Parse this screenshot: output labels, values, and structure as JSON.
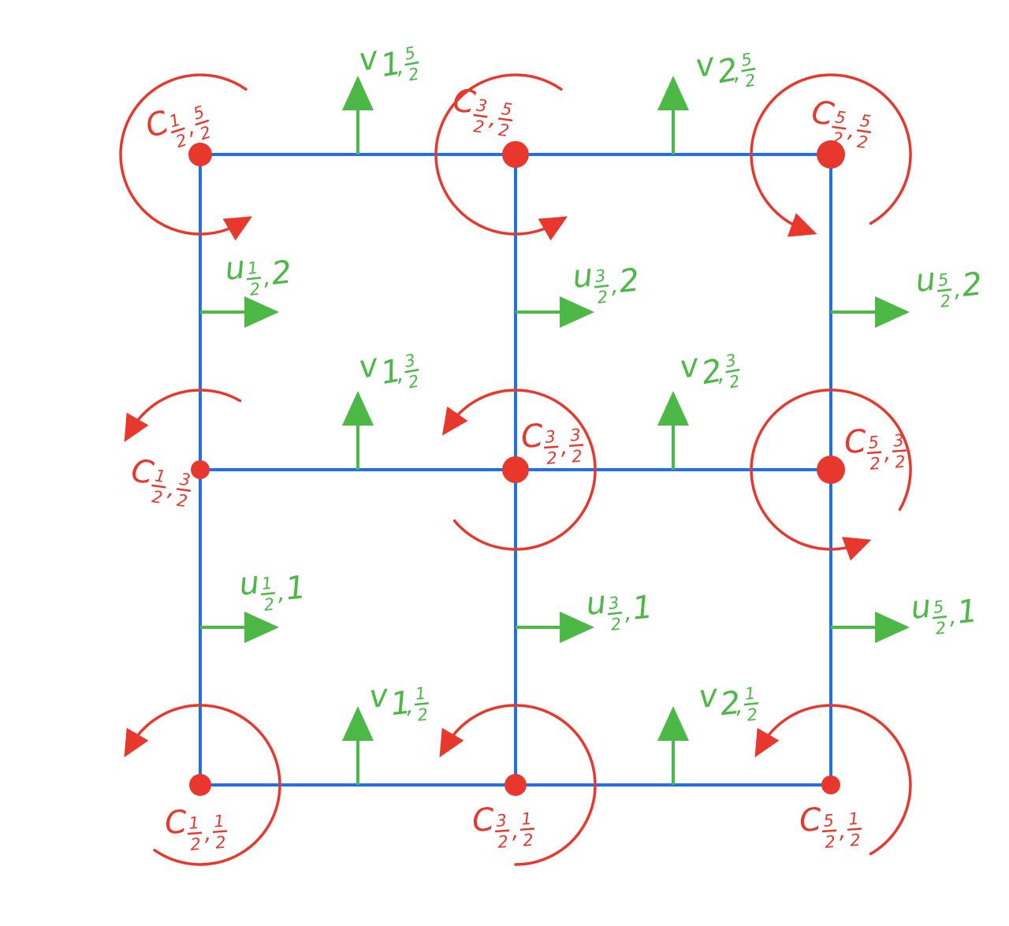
{
  "colors": {
    "grid": "#1f72e0",
    "node": "#e8382d",
    "vector": "#4cb845"
  },
  "nodes": [
    {
      "id": "c-half-half",
      "sym": "C",
      "i": {
        "num": "1",
        "den": "2"
      },
      "j": {
        "num": "1",
        "den": "2"
      }
    },
    {
      "id": "c-3half-half",
      "sym": "C",
      "i": {
        "num": "3",
        "den": "2"
      },
      "j": {
        "num": "1",
        "den": "2"
      }
    },
    {
      "id": "c-5half-half",
      "sym": "C",
      "i": {
        "num": "5",
        "den": "2"
      },
      "j": {
        "num": "1",
        "den": "2"
      }
    },
    {
      "id": "c-half-3half",
      "sym": "C",
      "i": {
        "num": "1",
        "den": "2"
      },
      "j": {
        "num": "3",
        "den": "2"
      }
    },
    {
      "id": "c-3half-3half",
      "sym": "C",
      "i": {
        "num": "3",
        "den": "2"
      },
      "j": {
        "num": "3",
        "den": "2"
      }
    },
    {
      "id": "c-5half-3half",
      "sym": "C",
      "i": {
        "num": "5",
        "den": "2"
      },
      "j": {
        "num": "3",
        "den": "2"
      }
    },
    {
      "id": "c-half-5half",
      "sym": "C",
      "i": {
        "num": "1",
        "den": "2"
      },
      "j": {
        "num": "5",
        "den": "2"
      }
    },
    {
      "id": "c-3half-5half",
      "sym": "C",
      "i": {
        "num": "3",
        "den": "2"
      },
      "j": {
        "num": "5",
        "den": "2"
      }
    },
    {
      "id": "c-5half-5half",
      "sym": "C",
      "i": {
        "num": "5",
        "den": "2"
      },
      "j": {
        "num": "5",
        "den": "2"
      }
    }
  ],
  "u_arrows": [
    {
      "id": "u-half-1",
      "sym": "u",
      "i": {
        "num": "1",
        "den": "2"
      },
      "j": {
        "text": "1"
      }
    },
    {
      "id": "u-3half-1",
      "sym": "u",
      "i": {
        "num": "3",
        "den": "2"
      },
      "j": {
        "text": "1"
      }
    },
    {
      "id": "u-5half-1",
      "sym": "u",
      "i": {
        "num": "5",
        "den": "2"
      },
      "j": {
        "text": "1"
      }
    },
    {
      "id": "u-half-2",
      "sym": "u",
      "i": {
        "num": "1",
        "den": "2"
      },
      "j": {
        "text": "2"
      }
    },
    {
      "id": "u-3half-2",
      "sym": "u",
      "i": {
        "num": "3",
        "den": "2"
      },
      "j": {
        "text": "2"
      }
    },
    {
      "id": "u-5half-2",
      "sym": "u",
      "i": {
        "num": "5",
        "den": "2"
      },
      "j": {
        "text": "2"
      }
    }
  ],
  "v_arrows": [
    {
      "id": "v-1-half",
      "sym": "v",
      "i": {
        "text": "1"
      },
      "j": {
        "num": "1",
        "den": "2"
      }
    },
    {
      "id": "v-2-half",
      "sym": "v",
      "i": {
        "text": "2"
      },
      "j": {
        "num": "1",
        "den": "2"
      }
    },
    {
      "id": "v-1-3half",
      "sym": "v",
      "i": {
        "text": "1"
      },
      "j": {
        "num": "3",
        "den": "2"
      }
    },
    {
      "id": "v-2-3half",
      "sym": "v",
      "i": {
        "text": "2"
      },
      "j": {
        "num": "3",
        "den": "2"
      }
    },
    {
      "id": "v-1-5half",
      "sym": "v",
      "i": {
        "text": "1"
      },
      "j": {
        "num": "5",
        "den": "2"
      }
    },
    {
      "id": "v-2-5half",
      "sym": "v",
      "i": {
        "text": "2"
      },
      "j": {
        "num": "5",
        "den": "2"
      }
    }
  ]
}
